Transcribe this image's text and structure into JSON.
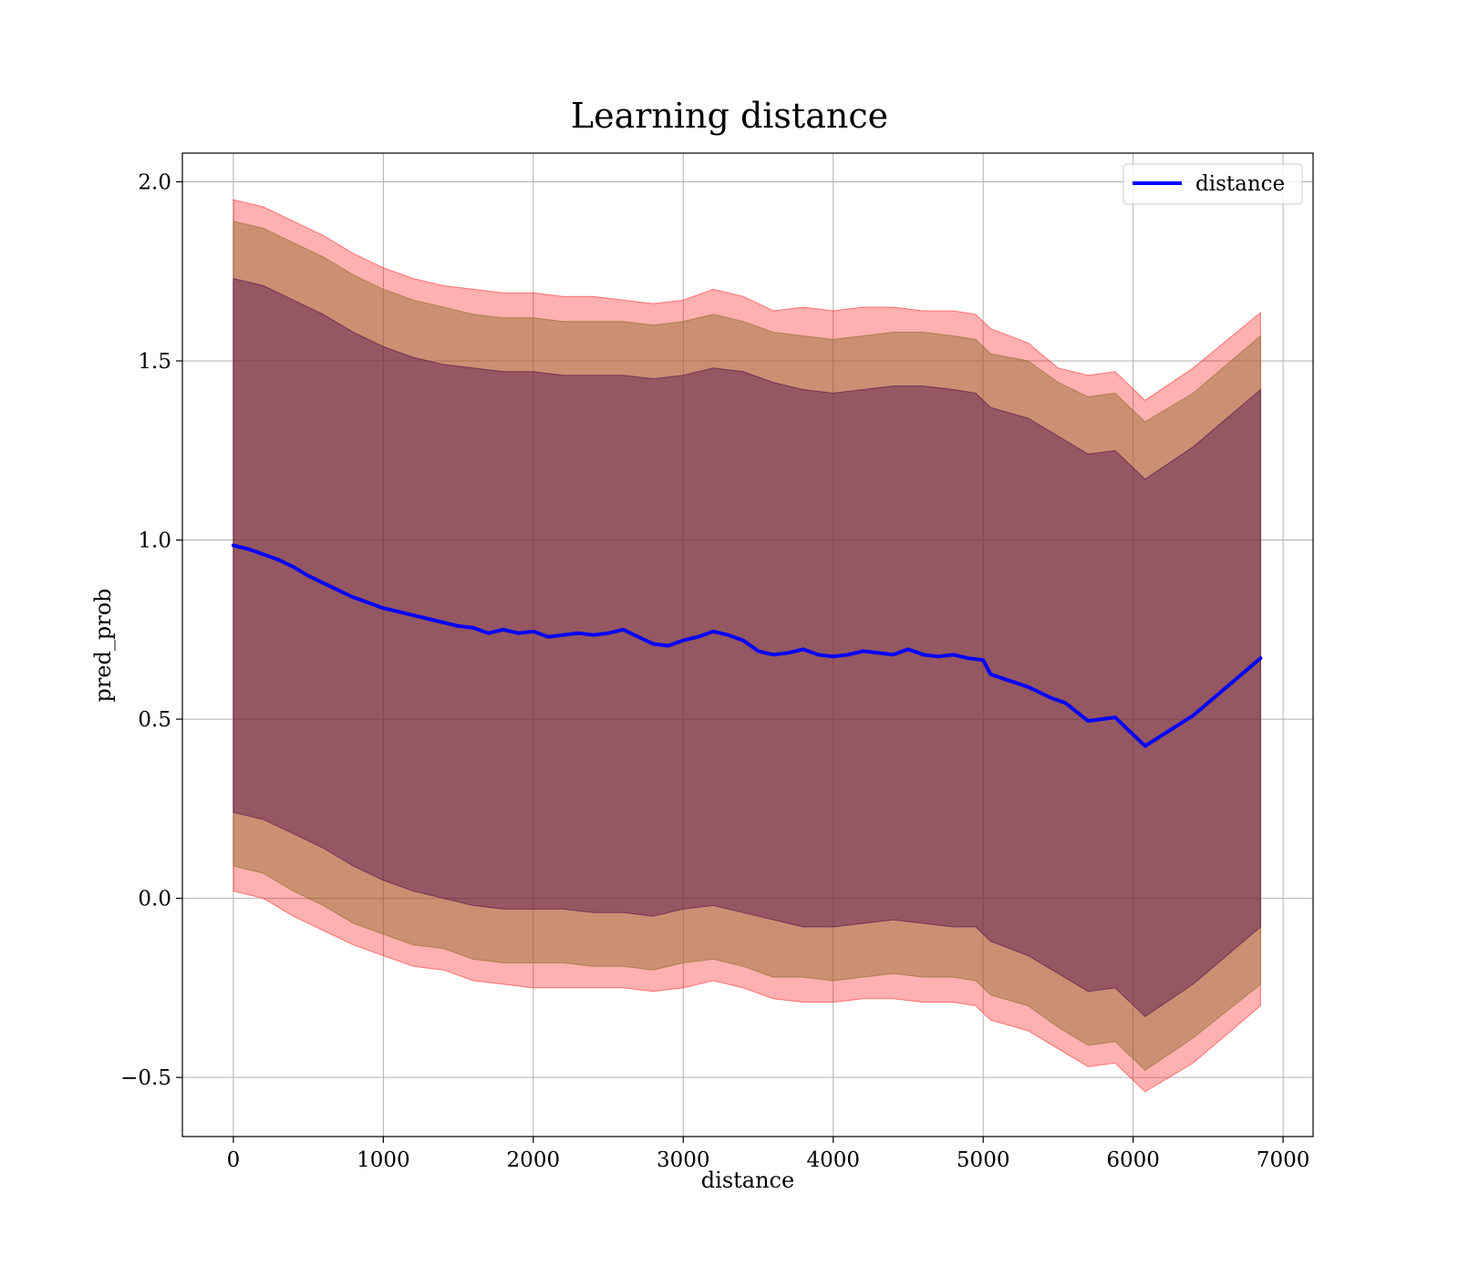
{
  "chart_data": {
    "type": "line",
    "title": "Learning distance",
    "xlabel": "distance",
    "ylabel": "pred_prob",
    "xlim": [
      -340,
      7200
    ],
    "ylim": [
      -0.665,
      2.08
    ],
    "xticks": [
      0,
      1000,
      2000,
      3000,
      4000,
      5000,
      6000,
      7000
    ],
    "xtick_labels": [
      "0",
      "1000",
      "2000",
      "3000",
      "4000",
      "5000",
      "6000",
      "7000"
    ],
    "yticks": [
      -0.5,
      0.0,
      0.5,
      1.0,
      1.5,
      2.0
    ],
    "ytick_labels": [
      "−0.5",
      "0.0",
      "0.5",
      "1.0",
      "1.5",
      "2.0"
    ],
    "grid": true,
    "legend_position": "top-right",
    "series": [
      {
        "name": "distance",
        "color": "#0000ff",
        "x": [
          0,
          100,
          200,
          300,
          400,
          500,
          600,
          700,
          800,
          900,
          1000,
          1100,
          1200,
          1300,
          1400,
          1500,
          1600,
          1700,
          1800,
          1900,
          2000,
          2100,
          2200,
          2300,
          2400,
          2500,
          2600,
          2700,
          2800,
          2900,
          3000,
          3100,
          3200,
          3300,
          3400,
          3500,
          3600,
          3700,
          3800,
          3900,
          4000,
          4100,
          4200,
          4300,
          4400,
          4500,
          4600,
          4700,
          4800,
          4900,
          5000,
          5050,
          5300,
          5450,
          5550,
          5700,
          5880,
          6080,
          6400,
          6850
        ],
        "y": [
          0.985,
          0.975,
          0.96,
          0.945,
          0.925,
          0.9,
          0.88,
          0.86,
          0.84,
          0.825,
          0.81,
          0.8,
          0.79,
          0.78,
          0.77,
          0.76,
          0.755,
          0.74,
          0.75,
          0.74,
          0.745,
          0.73,
          0.735,
          0.74,
          0.735,
          0.74,
          0.75,
          0.73,
          0.71,
          0.705,
          0.72,
          0.73,
          0.745,
          0.735,
          0.72,
          0.69,
          0.68,
          0.685,
          0.695,
          0.68,
          0.675,
          0.68,
          0.69,
          0.685,
          0.68,
          0.695,
          0.68,
          0.675,
          0.68,
          0.67,
          0.665,
          0.625,
          0.59,
          0.56,
          0.545,
          0.495,
          0.505,
          0.425,
          0.51,
          0.67
        ]
      }
    ],
    "bands": [
      {
        "color": "#ff0000",
        "opacity": 0.31,
        "x": [
          0,
          200,
          400,
          600,
          800,
          1000,
          1200,
          1400,
          1600,
          1800,
          2000,
          2200,
          2400,
          2600,
          2800,
          3000,
          3200,
          3400,
          3600,
          3800,
          4000,
          4200,
          4400,
          4600,
          4800,
          4950,
          5050,
          5300,
          5500,
          5700,
          5880,
          6080,
          6400,
          6850
        ],
        "upper": [
          1.95,
          1.93,
          1.89,
          1.85,
          1.8,
          1.76,
          1.73,
          1.71,
          1.7,
          1.69,
          1.69,
          1.68,
          1.68,
          1.67,
          1.66,
          1.67,
          1.7,
          1.68,
          1.64,
          1.65,
          1.64,
          1.65,
          1.65,
          1.64,
          1.64,
          1.63,
          1.59,
          1.55,
          1.48,
          1.46,
          1.47,
          1.39,
          1.48,
          1.635
        ],
        "lower": [
          0.02,
          0.0,
          -0.05,
          -0.09,
          -0.13,
          -0.16,
          -0.19,
          -0.2,
          -0.23,
          -0.24,
          -0.25,
          -0.25,
          -0.25,
          -0.25,
          -0.26,
          -0.25,
          -0.23,
          -0.25,
          -0.28,
          -0.29,
          -0.29,
          -0.28,
          -0.28,
          -0.29,
          -0.29,
          -0.3,
          -0.34,
          -0.37,
          -0.42,
          -0.47,
          -0.46,
          -0.54,
          -0.46,
          -0.3
        ]
      },
      {
        "color": "#8b6a2a",
        "opacity": 0.45,
        "x": [
          0,
          200,
          400,
          600,
          800,
          1000,
          1200,
          1400,
          1600,
          1800,
          2000,
          2200,
          2400,
          2600,
          2800,
          3000,
          3200,
          3400,
          3600,
          3800,
          4000,
          4200,
          4400,
          4600,
          4800,
          4950,
          5050,
          5300,
          5500,
          5700,
          5880,
          6080,
          6400,
          6850
        ],
        "upper": [
          1.89,
          1.87,
          1.83,
          1.79,
          1.74,
          1.7,
          1.67,
          1.65,
          1.63,
          1.62,
          1.62,
          1.61,
          1.61,
          1.61,
          1.6,
          1.61,
          1.63,
          1.61,
          1.58,
          1.57,
          1.56,
          1.57,
          1.58,
          1.58,
          1.57,
          1.56,
          1.52,
          1.5,
          1.44,
          1.4,
          1.41,
          1.33,
          1.41,
          1.57
        ],
        "lower": [
          0.09,
          0.07,
          0.02,
          -0.02,
          -0.07,
          -0.1,
          -0.13,
          -0.14,
          -0.17,
          -0.18,
          -0.18,
          -0.18,
          -0.19,
          -0.19,
          -0.2,
          -0.18,
          -0.17,
          -0.19,
          -0.22,
          -0.22,
          -0.23,
          -0.22,
          -0.21,
          -0.22,
          -0.22,
          -0.23,
          -0.27,
          -0.3,
          -0.36,
          -0.41,
          -0.4,
          -0.48,
          -0.39,
          -0.24
        ]
      },
      {
        "color": "#4b0a4b",
        "opacity": 0.42,
        "x": [
          0,
          200,
          400,
          600,
          800,
          1000,
          1200,
          1400,
          1600,
          1800,
          2000,
          2200,
          2400,
          2600,
          2800,
          3000,
          3200,
          3400,
          3600,
          3800,
          4000,
          4200,
          4400,
          4600,
          4800,
          4950,
          5050,
          5300,
          5500,
          5700,
          5880,
          6080,
          6400,
          6850
        ],
        "upper": [
          1.73,
          1.71,
          1.67,
          1.63,
          1.58,
          1.54,
          1.51,
          1.49,
          1.48,
          1.47,
          1.47,
          1.46,
          1.46,
          1.46,
          1.45,
          1.46,
          1.48,
          1.47,
          1.44,
          1.42,
          1.41,
          1.42,
          1.43,
          1.43,
          1.42,
          1.41,
          1.37,
          1.34,
          1.29,
          1.24,
          1.25,
          1.17,
          1.26,
          1.42
        ],
        "lower": [
          0.24,
          0.22,
          0.18,
          0.14,
          0.09,
          0.05,
          0.02,
          0.0,
          -0.02,
          -0.03,
          -0.03,
          -0.03,
          -0.04,
          -0.04,
          -0.05,
          -0.03,
          -0.02,
          -0.04,
          -0.06,
          -0.08,
          -0.08,
          -0.07,
          -0.06,
          -0.07,
          -0.08,
          -0.08,
          -0.12,
          -0.16,
          -0.21,
          -0.26,
          -0.25,
          -0.33,
          -0.24,
          -0.08
        ]
      }
    ]
  }
}
